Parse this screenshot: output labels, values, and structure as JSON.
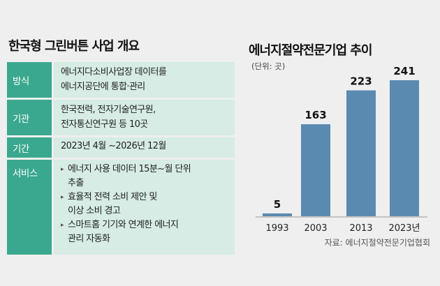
{
  "overview": {
    "title": "한국형 그린버튼 사업 개요",
    "rows": [
      {
        "label": "방식",
        "lines": [
          "에너지다소비사업장 데이터를",
          "에너지공단에 통합·관리"
        ]
      },
      {
        "label": "기관",
        "lines": [
          "한국전력, 전자기술연구원,",
          "전자통신연구원 등 10곳"
        ]
      },
      {
        "label": "기간",
        "lines": [
          "2023년 4월 ~2026년 12월"
        ]
      }
    ],
    "service": {
      "label": "서비스",
      "items": [
        {
          "lines": [
            "에너지 사용 데이터 15분~월 단위",
            "추출"
          ]
        },
        {
          "lines": [
            "효율적 전력 소비 제안 및",
            "이상 소비 경고"
          ]
        },
        {
          "lines": [
            "스마트홈 기기와 연계한 에너지",
            "관리 자동화"
          ]
        }
      ]
    }
  },
  "chart_data": {
    "type": "bar",
    "title": "에너지절약전문기업 추이",
    "unit": "(단위: 곳)",
    "categories": [
      "1993",
      "2003",
      "2013",
      "2023년"
    ],
    "values": [
      5,
      163,
      223,
      241
    ],
    "ylim": [
      0,
      241
    ],
    "source": "자료: 에너지절약전문기업협회",
    "bar_color": "#5b8ab0",
    "grid": false,
    "legend": "none"
  },
  "colors": {
    "label_bg": "#3aa88e",
    "value_bg": "#d6ece5",
    "background": "#efefef",
    "bar": "#5b8ab0"
  }
}
